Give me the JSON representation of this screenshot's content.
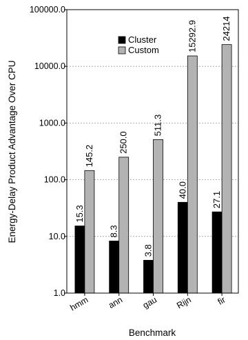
{
  "chart_data": {
    "type": "bar",
    "title": "",
    "xlabel": "Benchmark",
    "ylabel": "Energy-Delay Product Advantage Over CPU",
    "yscale": "log",
    "ylim": [
      1.0,
      100000.0
    ],
    "yticks": [
      1.0,
      10.0,
      100.0,
      1000.0,
      10000.0,
      100000.0
    ],
    "ytick_labels": [
      "1.0",
      "10.0",
      "100.0",
      "1000.0",
      "10000.0",
      "100000.0"
    ],
    "grid": true,
    "legend_position": "top-center",
    "categories": [
      "hmm",
      "ann",
      "gau",
      "Rijn",
      "fir"
    ],
    "series": [
      {
        "name": "Cluster",
        "color": "#000000",
        "values": [
          15.3,
          8.3,
          3.8,
          40.0,
          27.1
        ],
        "labels": [
          "15.3",
          "8.3",
          "3.8",
          "40.0",
          "27.1"
        ]
      },
      {
        "name": "Custom",
        "color": "#b3b3b3",
        "values": [
          145.2,
          250.0,
          511.3,
          15292.9,
          24214
        ],
        "labels": [
          "145.2",
          "250.0",
          "511.3",
          "15292.9",
          "24214"
        ]
      }
    ]
  }
}
